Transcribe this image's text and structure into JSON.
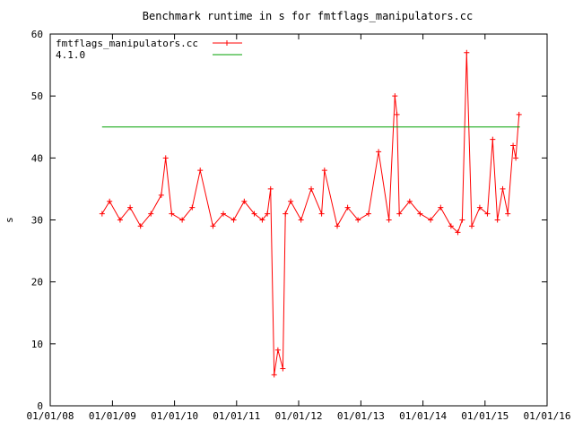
{
  "chart_data": {
    "type": "line",
    "title": "Benchmark runtime in s for fmtflags_manipulators.cc",
    "xlabel": "",
    "ylabel": "s",
    "xlim": [
      "2008-01-01",
      "2016-01-01"
    ],
    "ylim": [
      0,
      60
    ],
    "x_tick_labels": [
      "01/01/08",
      "01/01/09",
      "01/01/10",
      "01/01/11",
      "01/01/12",
      "01/01/13",
      "01/01/14",
      "01/01/15",
      "01/01/16"
    ],
    "y_tick_labels": [
      "0",
      "10",
      "20",
      "30",
      "40",
      "50",
      "60"
    ],
    "y_ticks": [
      0,
      10,
      20,
      30,
      40,
      50,
      60
    ],
    "grid": false,
    "legend_position": "top-left",
    "series": [
      {
        "name": "fmtflags_manipulators.cc",
        "color": "#ff0000",
        "marker": "plus",
        "x": [
          "2008-11-01",
          "2008-12-15",
          "2009-02-15",
          "2009-04-15",
          "2009-06-15",
          "2009-08-15",
          "2009-10-15",
          "2009-11-10",
          "2009-12-15",
          "2010-02-15",
          "2010-04-15",
          "2010-06-01",
          "2010-08-15",
          "2010-10-15",
          "2010-12-15",
          "2011-02-15",
          "2011-04-15",
          "2011-06-01",
          "2011-07-01",
          "2011-07-20",
          "2011-08-10",
          "2011-09-01",
          "2011-09-30",
          "2011-10-15",
          "2011-11-15",
          "2012-01-15",
          "2012-03-15",
          "2012-05-15",
          "2012-06-01",
          "2012-08-15",
          "2012-10-15",
          "2012-12-15",
          "2013-02-15",
          "2013-04-15",
          "2013-06-15",
          "2013-07-20",
          "2013-08-01",
          "2013-08-15",
          "2013-10-15",
          "2013-12-15",
          "2014-02-15",
          "2014-04-15",
          "2014-06-15",
          "2014-07-25",
          "2014-08-20",
          "2014-09-15",
          "2014-10-15",
          "2014-12-01",
          "2015-01-15",
          "2015-02-15",
          "2015-03-15",
          "2015-04-15",
          "2015-05-15",
          "2015-06-15",
          "2015-07-01",
          "2015-07-20"
        ],
        "y": [
          31,
          33,
          30,
          32,
          29,
          31,
          34,
          40,
          31,
          30,
          32,
          38,
          29,
          31,
          30,
          33,
          31,
          30,
          31,
          35,
          5,
          9,
          6,
          31,
          33,
          30,
          35,
          31,
          38,
          29,
          32,
          30,
          31,
          41,
          30,
          50,
          47,
          31,
          33,
          31,
          30,
          32,
          29,
          28,
          30,
          57,
          29,
          32,
          31,
          43,
          30,
          35,
          31,
          42,
          40,
          47
        ]
      },
      {
        "name": "4.1.0",
        "color": "#00a000",
        "x": [
          "2008-11-01",
          "2015-07-25"
        ],
        "y": [
          45,
          45
        ]
      }
    ]
  }
}
